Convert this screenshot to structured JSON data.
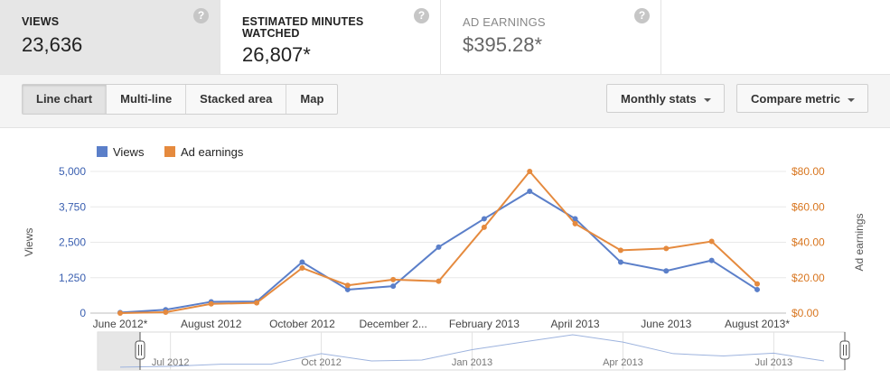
{
  "metrics": [
    {
      "label": "Views",
      "value": "23,636",
      "help": "?"
    },
    {
      "label": "Estimated minutes watched",
      "value": "26,807*",
      "help": "?"
    },
    {
      "label": "Ad earnings",
      "value": "$395.28*",
      "help": "?"
    }
  ],
  "toolbar": {
    "chart_types": [
      "Line chart",
      "Multi-line",
      "Stacked area",
      "Map"
    ],
    "active_chart_type": "Line chart",
    "period_label": "Monthly stats",
    "compare_label": "Compare metric"
  },
  "colors": {
    "views": "#5b7fc9",
    "earnings": "#e58a3e",
    "grid": "#e8e8e8",
    "axis_left": "#3a5fb0",
    "axis_right": "#d8751e"
  },
  "chart_data": {
    "type": "line",
    "x": [
      "June 2012",
      "July 2012",
      "August 2012",
      "September 2012",
      "October 2012",
      "November 2012",
      "December 2012",
      "January 2013",
      "February 2013",
      "March 2013",
      "April 2013",
      "May 2013",
      "June 2013",
      "July 2013",
      "August 2013"
    ],
    "x_tick_labels": [
      "June 2012*",
      "August 2012",
      "October 2012",
      "December 2...",
      "February 2013",
      "April 2013",
      "June 2013",
      "August 2013*"
    ],
    "series": [
      {
        "name": "Views",
        "axis": "left",
        "values": [
          20,
          120,
          400,
          410,
          1800,
          830,
          950,
          2330,
          3330,
          4300,
          3330,
          1800,
          1490,
          1860,
          830
        ]
      },
      {
        "name": "Ad earnings",
        "axis": "right",
        "values": [
          0.0,
          0.5,
          5.2,
          5.8,
          25.5,
          15.7,
          18.9,
          18.0,
          48.5,
          80.0,
          50.5,
          35.5,
          36.5,
          40.5,
          16.5
        ]
      }
    ],
    "ylabel": "Views",
    "ylim": [
      0,
      5000
    ],
    "yticks": [
      "0",
      "1,250",
      "2,500",
      "3,750",
      "5,000"
    ],
    "y2label": "Ad earnings",
    "y2lim": [
      0,
      80
    ],
    "y2ticks": [
      "$0.00",
      "$20.00",
      "$40.00",
      "$60.00",
      "$80.00"
    ],
    "legend_position": "top-left",
    "grid": true,
    "navigator": {
      "labels": [
        "Jul 2012",
        "Oct 2012",
        "Jan 2013",
        "Apr 2013",
        "Jul 2013"
      ],
      "values": [
        20,
        120,
        400,
        410,
        1800,
        830,
        950,
        2330,
        3330,
        4300,
        3330,
        1800,
        1490,
        1860,
        830
      ]
    }
  }
}
